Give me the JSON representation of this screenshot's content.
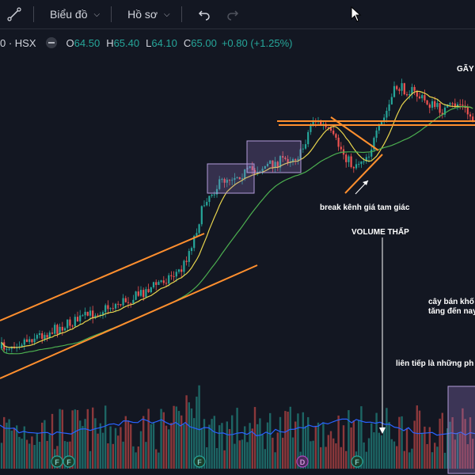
{
  "toolbar": {
    "chart_label": "Biểu đồ",
    "profile_label": "Hồ sơ"
  },
  "legend": {
    "symbol": "0 · HSX",
    "open_key": "O",
    "open": "64.50",
    "high_key": "H",
    "high": "65.40",
    "low_key": "L",
    "low": "64.10",
    "close_key": "C",
    "close": "65.00",
    "change": "+0.80 (+1.25%)"
  },
  "annotations": {
    "gap": "GÃY",
    "break_channel": "break kênh giá tam giác",
    "low_volume": "VOLUME THẤP",
    "supply_1": "cây bán khố",
    "supply_2": "tăng đến nay",
    "consecutive": "liên tiếp là những ph"
  },
  "markers": [
    "F",
    "F",
    "F",
    "D",
    "F"
  ],
  "colors": {
    "background": "#131722",
    "up": "#26a69a",
    "down": "#ef5350",
    "ma_fast": "#e8d44d",
    "ma_slow": "#4caf50",
    "trend": "#ff8f2e",
    "box_fill": "#9c7bd1",
    "volume_ma": "#2962ff"
  },
  "chart_data": {
    "type": "candlestick",
    "symbol": "HSX",
    "last_ohlc": {
      "open": 64.5,
      "high": 65.4,
      "low": 64.1,
      "close": 65.0,
      "change": 0.8,
      "change_pct": 1.25
    },
    "trend": "uptrend channel, consolidation boxes, triangle break, then rising top",
    "series": [
      {
        "name": "price"
      },
      {
        "name": "volume"
      }
    ]
  }
}
